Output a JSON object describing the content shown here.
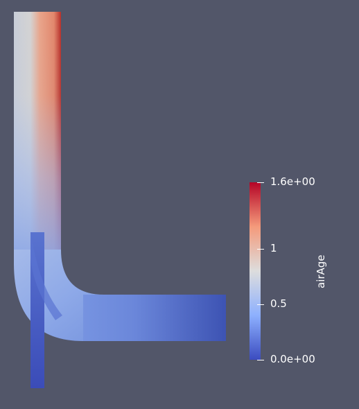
{
  "scalar_bar": {
    "title": "airAge",
    "ticks": [
      {
        "value": 1.6,
        "label": "1.6e+00"
      },
      {
        "value": 1.0,
        "label": "1"
      },
      {
        "value": 0.5,
        "label": "0.5"
      },
      {
        "value": 0.0,
        "label": "0.0e+00"
      }
    ],
    "range": [
      0,
      1.6
    ],
    "colormap": [
      "#3b4cc0",
      "#8db0fe",
      "#dddddd",
      "#f49a7b",
      "#b40426"
    ]
  }
}
